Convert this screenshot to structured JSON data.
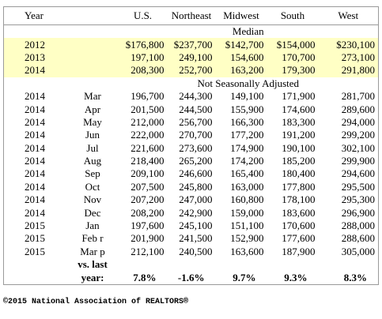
{
  "columns": [
    "Year",
    "U.S.",
    "Northeast",
    "Midwest",
    "South",
    "West"
  ],
  "median_label": "Median",
  "annual_rows": [
    [
      "2012",
      "$176,800",
      "$237,700",
      "$142,700",
      "$154,000",
      "$230,100"
    ],
    [
      "2013",
      "197,100",
      "249,100",
      "154,600",
      "170,700",
      "273,100"
    ],
    [
      "2014",
      "208,300",
      "252,700",
      "163,200",
      "179,300",
      "291,800"
    ]
  ],
  "nsa_label": "Not Seasonally Adjusted",
  "monthly_rows": [
    [
      "2014",
      "Mar",
      "196,700",
      "244,300",
      "149,100",
      "171,900",
      "281,700"
    ],
    [
      "2014",
      "Apr",
      "201,500",
      "244,500",
      "155,900",
      "174,600",
      "289,600"
    ],
    [
      "2014",
      "May",
      "212,000",
      "256,700",
      "166,300",
      "183,300",
      "294,000"
    ],
    [
      "2014",
      "Jun",
      "222,000",
      "270,700",
      "177,200",
      "191,200",
      "299,200"
    ],
    [
      "2014",
      "Jul",
      "221,600",
      "273,600",
      "174,900",
      "190,100",
      "302,100"
    ],
    [
      "2014",
      "Aug",
      "218,400",
      "265,200",
      "174,200",
      "185,200",
      "299,900"
    ],
    [
      "2014",
      "Sep",
      "209,100",
      "246,600",
      "165,400",
      "180,400",
      "294,600"
    ],
    [
      "2014",
      "Oct",
      "207,500",
      "245,800",
      "163,000",
      "177,800",
      "295,500"
    ],
    [
      "2014",
      "Nov",
      "207,200",
      "247,000",
      "160,800",
      "178,100",
      "295,300"
    ],
    [
      "2014",
      "Dec",
      "208,200",
      "242,900",
      "159,000",
      "183,600",
      "296,900"
    ],
    [
      "2015",
      "Jan",
      "197,600",
      "245,100",
      "151,100",
      "170,600",
      "288,000"
    ],
    [
      "2015",
      "Feb r",
      "201,900",
      "241,500",
      "152,900",
      "177,600",
      "288,600"
    ],
    [
      "2015",
      "Mar p",
      "212,100",
      "240,500",
      "163,600",
      "187,900",
      "305,000"
    ]
  ],
  "change_label": [
    "vs. last",
    "year:"
  ],
  "change_values": [
    "7.8%",
    "-1.6%",
    "9.7%",
    "9.3%",
    "8.3%"
  ],
  "footer": "©2015 National Association of REALTORS®"
}
